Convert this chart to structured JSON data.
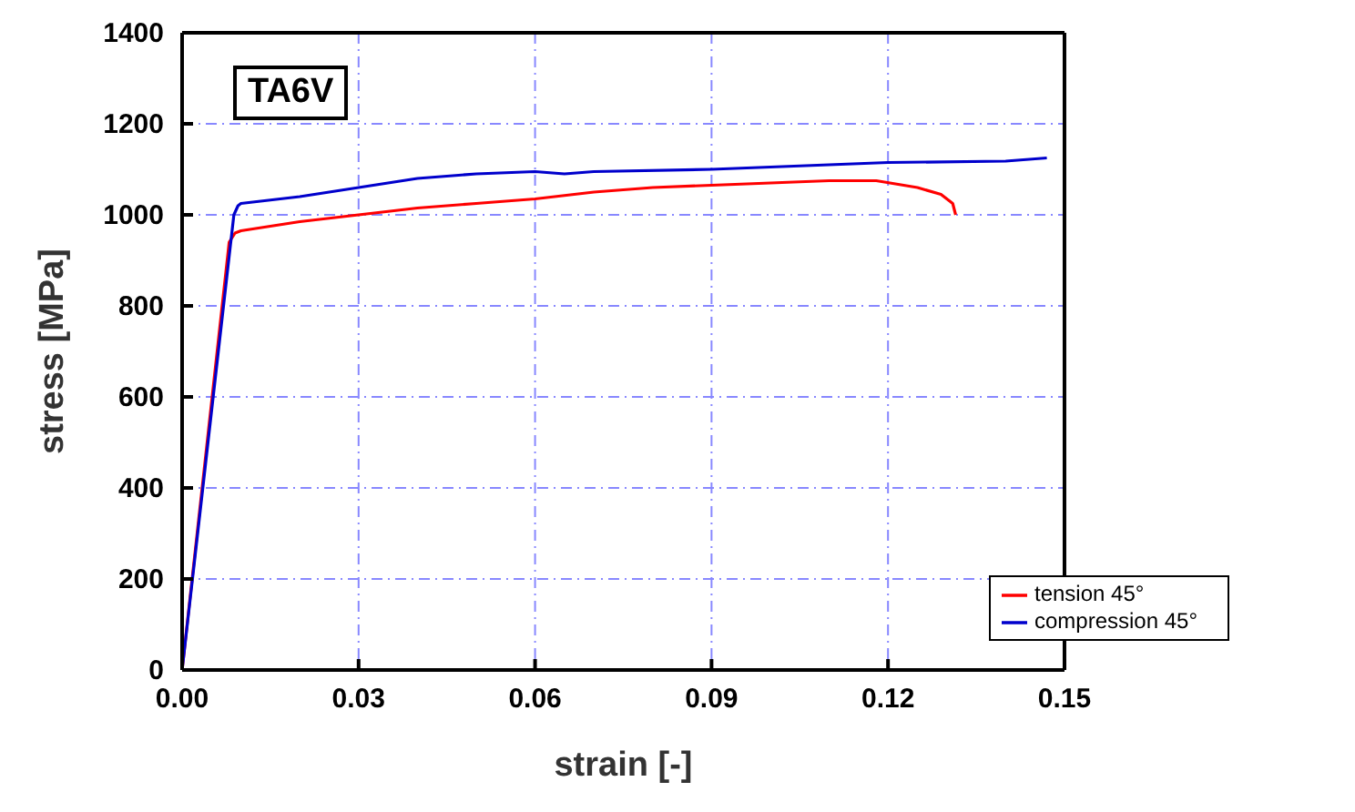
{
  "chart_data": {
    "type": "line",
    "xlabel": "strain [-]",
    "ylabel": "stress [MPa]",
    "annotations": [
      "TA6V"
    ],
    "xlim": [
      0,
      0.15
    ],
    "xticks": [
      {
        "value": 0,
        "label": "0.00"
      },
      {
        "value": 0.03,
        "label": "0.03"
      },
      {
        "value": 0.06,
        "label": "0.06"
      },
      {
        "value": 0.09,
        "label": "0.09"
      },
      {
        "value": 0.12,
        "label": "0.12"
      },
      {
        "value": 0.15,
        "label": "0.15"
      }
    ],
    "ylim": [
      0,
      1400
    ],
    "yticks": [
      0,
      200,
      400,
      600,
      800,
      1000,
      1200,
      1400
    ],
    "grid": true,
    "legend": "bottom right",
    "marker": "none",
    "line_style": "solid",
    "series": [
      {
        "name": "tension 45°",
        "color": "#ff0000",
        "x": [
          0,
          0.008,
          0.009,
          0.01,
          0.02,
          0.03,
          0.04,
          0.05,
          0.06,
          0.07,
          0.08,
          0.09,
          0.1,
          0.11,
          0.118,
          0.125,
          0.129,
          0.131,
          0.1315
        ],
        "values": [
          0,
          940,
          960,
          965,
          985,
          1000,
          1015,
          1025,
          1035,
          1050,
          1060,
          1065,
          1070,
          1075,
          1075,
          1060,
          1045,
          1025,
          1000
        ]
      },
      {
        "name": "compression 45°",
        "color": "#0000cc",
        "x": [
          0,
          0.0088,
          0.0095,
          0.01,
          0.02,
          0.03,
          0.04,
          0.05,
          0.06,
          0.065,
          0.07,
          0.09,
          0.1,
          0.12,
          0.14,
          0.147
        ],
        "values": [
          0,
          1000,
          1020,
          1025,
          1040,
          1060,
          1080,
          1090,
          1095,
          1090,
          1095,
          1100,
          1105,
          1115,
          1118,
          1125
        ]
      }
    ]
  }
}
